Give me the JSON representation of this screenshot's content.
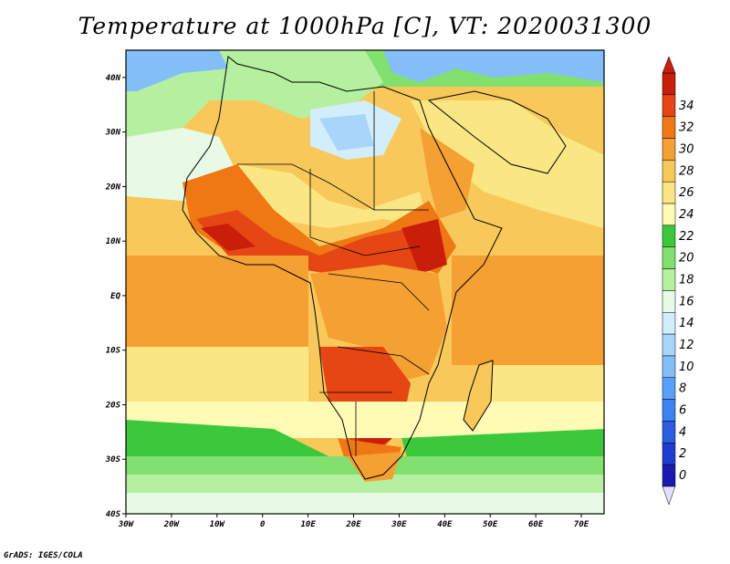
{
  "title": "Temperature at 1000hPa [C], VT: 2020031300",
  "credit": "GrADS: IGES/COLA",
  "map": {
    "lon_range": [
      -30,
      75
    ],
    "lat_range": [
      -40,
      45
    ],
    "lon_ticks": [
      {
        "value": -30,
        "label": "30W"
      },
      {
        "value": -20,
        "label": "20W"
      },
      {
        "value": -10,
        "label": "10W"
      },
      {
        "value": 0,
        "label": "0"
      },
      {
        "value": 10,
        "label": "10E"
      },
      {
        "value": 20,
        "label": "20E"
      },
      {
        "value": 30,
        "label": "30E"
      },
      {
        "value": 40,
        "label": "40E"
      },
      {
        "value": 50,
        "label": "50E"
      },
      {
        "value": 60,
        "label": "60E"
      },
      {
        "value": 70,
        "label": "70E"
      }
    ],
    "lat_ticks": [
      {
        "value": 40,
        "label": "40N"
      },
      {
        "value": 30,
        "label": "30N"
      },
      {
        "value": 20,
        "label": "20N"
      },
      {
        "value": 10,
        "label": "10N"
      },
      {
        "value": 0,
        "label": "EQ"
      },
      {
        "value": -10,
        "label": "10S"
      },
      {
        "value": -20,
        "label": "20S"
      },
      {
        "value": -30,
        "label": "30S"
      },
      {
        "value": -40,
        "label": "40S"
      }
    ]
  },
  "colorbar": {
    "levels": [
      0,
      2,
      4,
      6,
      8,
      10,
      12,
      14,
      16,
      18,
      20,
      22,
      24,
      26,
      28,
      30,
      32,
      34
    ],
    "labels": [
      "0",
      "2",
      "4",
      "6",
      "8",
      "10",
      "12",
      "14",
      "16",
      "18",
      "20",
      "22",
      "24",
      "26",
      "28",
      "30",
      "32",
      "34"
    ],
    "colors": [
      "#1a1ab0",
      "#1e3cd0",
      "#2a5ee0",
      "#3c82f0",
      "#5aa0f8",
      "#82bef8",
      "#a8d6fa",
      "#d2eefa",
      "#e6fae6",
      "#b4f0a0",
      "#82e06e",
      "#3cc83c",
      "#fffab4",
      "#fae682",
      "#f8c85a",
      "#f5a032",
      "#f07814",
      "#e64614",
      "#c81e0a"
    ],
    "under_color": "#e0e0fa",
    "over_color": "#c81e0a"
  }
}
